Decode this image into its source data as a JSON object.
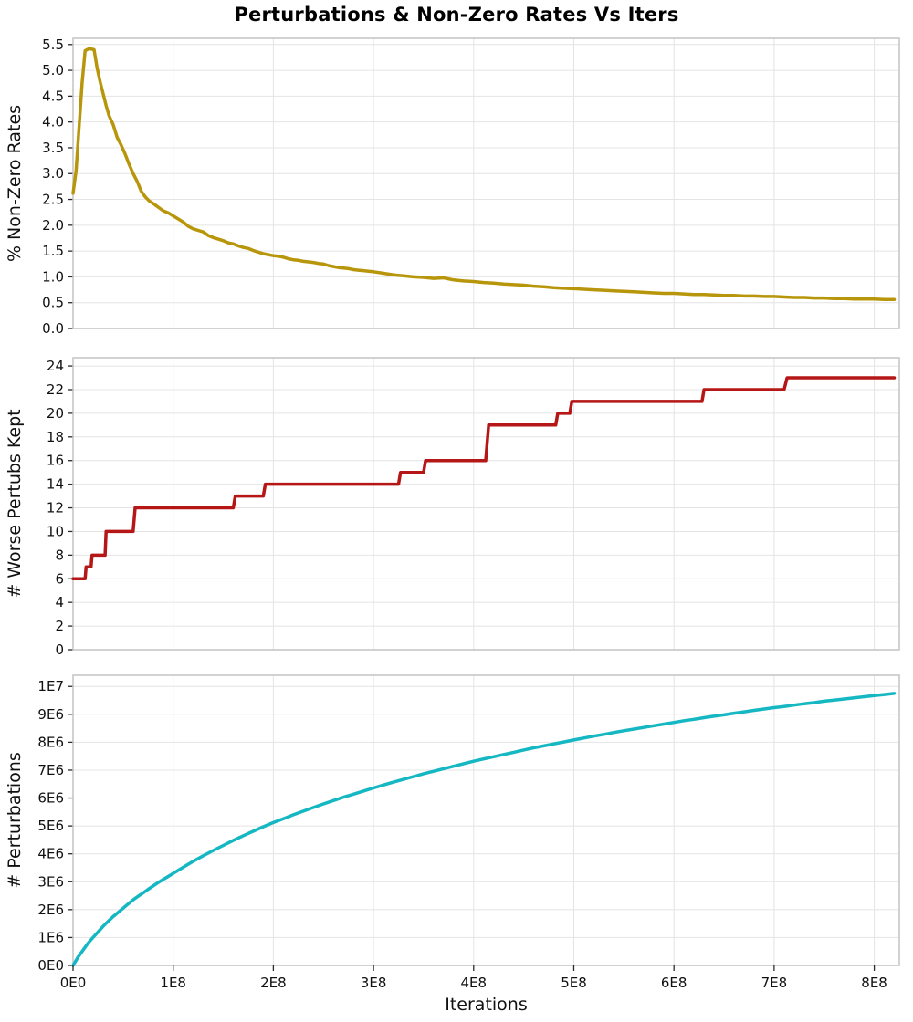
{
  "title": "Perturbations & Non-Zero Rates Vs Iters",
  "x_axis": {
    "label": "Iterations",
    "lim": [
      0,
      825000000.0
    ],
    "tick_values": [
      0,
      100000000.0,
      200000000.0,
      300000000.0,
      400000000.0,
      500000000.0,
      600000000.0,
      700000000.0,
      800000000.0
    ],
    "tick_labels": [
      "0E0",
      "1E8",
      "2E8",
      "3E8",
      "4E8",
      "5E8",
      "6E8",
      "7E8",
      "8E8"
    ]
  },
  "chart_data": [
    {
      "type": "line",
      "name": "non-zero-rates",
      "ylabel": "% Non-Zero Rates",
      "color": "#b8960b",
      "ylim": [
        0,
        5.62
      ],
      "ytick_values": [
        0,
        0.5,
        1,
        1.5,
        2,
        2.5,
        3,
        3.5,
        4,
        4.5,
        5,
        5.5
      ],
      "ytick_labels": [
        "0.0",
        "0.5",
        "1.0",
        "1.5",
        "2.0",
        "2.5",
        "3.0",
        "3.5",
        "4.0",
        "4.5",
        "5.0",
        "5.5"
      ],
      "x": [
        0,
        3000000.0,
        6000000.0,
        9000000.0,
        12000000.0,
        16000000.0,
        21000000.0,
        24000000.0,
        27000000.0,
        30000000.0,
        33000000.0,
        36000000.0,
        40000000.0,
        44000000.0,
        48000000.0,
        52000000.0,
        56000000.0,
        60000000.0,
        64000000.0,
        68000000.0,
        72000000.0,
        76000000.0,
        80000000.0,
        85000000.0,
        90000000.0,
        95000000.0,
        100000000.0,
        105000000.0,
        110000000.0,
        115000000.0,
        120000000.0,
        125000000.0,
        130000000.0,
        135000000.0,
        140000000.0,
        145000000.0,
        150000000.0,
        155000000.0,
        160000000.0,
        165000000.0,
        170000000.0,
        175000000.0,
        180000000.0,
        185000000.0,
        190000000.0,
        195000000.0,
        200000000.0,
        205000000.0,
        210000000.0,
        215000000.0,
        220000000.0,
        225000000.0,
        230000000.0,
        235000000.0,
        240000000.0,
        245000000.0,
        250000000.0,
        255000000.0,
        260000000.0,
        265000000.0,
        270000000.0,
        275000000.0,
        280000000.0,
        285000000.0,
        290000000.0,
        295000000.0,
        300000000.0,
        310000000.0,
        320000000.0,
        330000000.0,
        340000000.0,
        350000000.0,
        360000000.0,
        370000000.0,
        380000000.0,
        390000000.0,
        400000000.0,
        410000000.0,
        420000000.0,
        430000000.0,
        440000000.0,
        450000000.0,
        460000000.0,
        470000000.0,
        480000000.0,
        490000000.0,
        500000000.0,
        510000000.0,
        520000000.0,
        530000000.0,
        540000000.0,
        550000000.0,
        560000000.0,
        570000000.0,
        580000000.0,
        590000000.0,
        600000000.0,
        610000000.0,
        620000000.0,
        630000000.0,
        640000000.0,
        650000000.0,
        660000000.0,
        670000000.0,
        680000000.0,
        690000000.0,
        700000000.0,
        710000000.0,
        720000000.0,
        730000000.0,
        740000000.0,
        750000000.0,
        760000000.0,
        770000000.0,
        780000000.0,
        790000000.0,
        800000000.0,
        810000000.0,
        820000000.0
      ],
      "y": [
        2.62,
        3.05,
        3.9,
        4.75,
        5.38,
        5.42,
        5.4,
        5.05,
        4.78,
        4.55,
        4.32,
        4.12,
        3.95,
        3.7,
        3.55,
        3.38,
        3.18,
        3.0,
        2.85,
        2.66,
        2.55,
        2.47,
        2.42,
        2.35,
        2.28,
        2.24,
        2.18,
        2.12,
        2.06,
        1.98,
        1.93,
        1.9,
        1.87,
        1.8,
        1.76,
        1.73,
        1.7,
        1.66,
        1.64,
        1.6,
        1.57,
        1.55,
        1.51,
        1.48,
        1.45,
        1.43,
        1.41,
        1.4,
        1.38,
        1.35,
        1.33,
        1.32,
        1.3,
        1.29,
        1.28,
        1.26,
        1.25,
        1.22,
        1.2,
        1.18,
        1.17,
        1.16,
        1.14,
        1.13,
        1.12,
        1.11,
        1.1,
        1.07,
        1.04,
        1.02,
        1.0,
        0.99,
        0.97,
        0.98,
        0.94,
        0.92,
        0.91,
        0.89,
        0.88,
        0.86,
        0.85,
        0.84,
        0.82,
        0.81,
        0.79,
        0.78,
        0.77,
        0.76,
        0.75,
        0.74,
        0.73,
        0.72,
        0.71,
        0.7,
        0.69,
        0.68,
        0.68,
        0.67,
        0.66,
        0.66,
        0.65,
        0.64,
        0.64,
        0.63,
        0.63,
        0.62,
        0.62,
        0.61,
        0.6,
        0.6,
        0.59,
        0.59,
        0.58,
        0.58,
        0.57,
        0.57,
        0.57,
        0.56,
        0.56
      ]
    },
    {
      "type": "line",
      "name": "worse-perturbs-kept",
      "ylabel": "# Worse Pertubs Kept",
      "color": "#b51616",
      "ylim": [
        0,
        24.7
      ],
      "ytick_values": [
        0,
        2,
        4,
        6,
        8,
        10,
        12,
        14,
        16,
        18,
        20,
        22,
        24
      ],
      "ytick_labels": [
        "0",
        "2",
        "4",
        "6",
        "8",
        "10",
        "12",
        "14",
        "16",
        "18",
        "20",
        "22",
        "24"
      ],
      "x": [
        0,
        12000000.0,
        13000000.0,
        18000000.0,
        19000000.0,
        32000000.0,
        33000000.0,
        60000000.0,
        62000000.0,
        160000000.0,
        162000000.0,
        190000000.0,
        192000000.0,
        325000000.0,
        327000000.0,
        350000000.0,
        352000000.0,
        412000000.0,
        415000000.0,
        482000000.0,
        484000000.0,
        496000000.0,
        498000000.0,
        628000000.0,
        630000000.0,
        710000000.0,
        713000000.0,
        820000000.0
      ],
      "y": [
        6,
        6,
        7,
        7,
        8,
        8,
        10,
        10,
        12,
        12,
        13,
        13,
        14,
        14,
        15,
        15,
        16,
        16,
        19,
        19,
        20,
        20,
        21,
        21,
        22,
        22,
        23,
        23
      ]
    },
    {
      "type": "line",
      "name": "perturbations",
      "ylabel": "# Perturbations",
      "color": "#15b7c3",
      "ylim": [
        0,
        10400000.0
      ],
      "ytick_values": [
        0,
        1000000.0,
        2000000.0,
        3000000.0,
        4000000.0,
        5000000.0,
        6000000.0,
        7000000.0,
        8000000.0,
        9000000.0,
        10000000.0
      ],
      "ytick_labels": [
        "0E0",
        "1E6",
        "2E6",
        "3E6",
        "4E6",
        "5E6",
        "6E6",
        "7E6",
        "8E6",
        "9E6",
        "1E7"
      ],
      "x": [
        0,
        5000000.0,
        10000000.0,
        15000000.0,
        20000000.0,
        25000000.0,
        30000000.0,
        35000000.0,
        40000000.0,
        45000000.0,
        50000000.0,
        55000000.0,
        60000000.0,
        65000000.0,
        70000000.0,
        75000000.0,
        80000000.0,
        85000000.0,
        90000000.0,
        95000000.0,
        100000000.0,
        110000000.0,
        120000000.0,
        130000000.0,
        140000000.0,
        150000000.0,
        160000000.0,
        170000000.0,
        180000000.0,
        190000000.0,
        200000000.0,
        210000000.0,
        220000000.0,
        230000000.0,
        240000000.0,
        250000000.0,
        260000000.0,
        270000000.0,
        280000000.0,
        290000000.0,
        300000000.0,
        310000000.0,
        320000000.0,
        330000000.0,
        340000000.0,
        350000000.0,
        360000000.0,
        370000000.0,
        380000000.0,
        390000000.0,
        400000000.0,
        410000000.0,
        420000000.0,
        430000000.0,
        440000000.0,
        450000000.0,
        460000000.0,
        470000000.0,
        480000000.0,
        490000000.0,
        500000000.0,
        510000000.0,
        520000000.0,
        530000000.0,
        540000000.0,
        550000000.0,
        560000000.0,
        570000000.0,
        580000000.0,
        590000000.0,
        600000000.0,
        610000000.0,
        620000000.0,
        630000000.0,
        640000000.0,
        650000000.0,
        660000000.0,
        670000000.0,
        680000000.0,
        690000000.0,
        700000000.0,
        710000000.0,
        720000000.0,
        730000000.0,
        740000000.0,
        750000000.0,
        760000000.0,
        770000000.0,
        780000000.0,
        790000000.0,
        800000000.0,
        810000000.0,
        820000000.0
      ],
      "y": [
        0,
        300000.0,
        550000.0,
        800000.0,
        1000000.0,
        1200000.0,
        1400000.0,
        1580000.0,
        1750000.0,
        1900000.0,
        2050000.0,
        2200000.0,
        2350000.0,
        2480000.0,
        2600000.0,
        2730000.0,
        2850000.0,
        2970000.0,
        3080000.0,
        3190000.0,
        3300000.0,
        3520000.0,
        3730000.0,
        3930000.0,
        4120000.0,
        4300000.0,
        4480000.0,
        4650000.0,
        4810000.0,
        4970000.0,
        5120000.0,
        5260000.0,
        5400000.0,
        5530000.0,
        5660000.0,
        5790000.0,
        5910000.0,
        6030000.0,
        6140000.0,
        6250000.0,
        6360000.0,
        6470000.0,
        6570000.0,
        6670000.0,
        6770000.0,
        6870000.0,
        6960000.0,
        7050000.0,
        7140000.0,
        7230000.0,
        7320000.0,
        7400000.0,
        7480000.0,
        7560000.0,
        7640000.0,
        7720000.0,
        7800000.0,
        7870000.0,
        7940000.0,
        8010000.0,
        8080000.0,
        8150000.0,
        8220000.0,
        8280000.0,
        8350000.0,
        8410000.0,
        8470000.0,
        8530000.0,
        8590000.0,
        8650000.0,
        8710000.0,
        8770000.0,
        8820000.0,
        8880000.0,
        8930000.0,
        8980000.0,
        9040000.0,
        9090000.0,
        9140000.0,
        9190000.0,
        9240000.0,
        9280000.0,
        9330000.0,
        9380000.0,
        9420000.0,
        9470000.0,
        9510000.0,
        9550000.0,
        9590000.0,
        9630000.0,
        9670000.0,
        9710000.0,
        9750000.0
      ]
    }
  ]
}
